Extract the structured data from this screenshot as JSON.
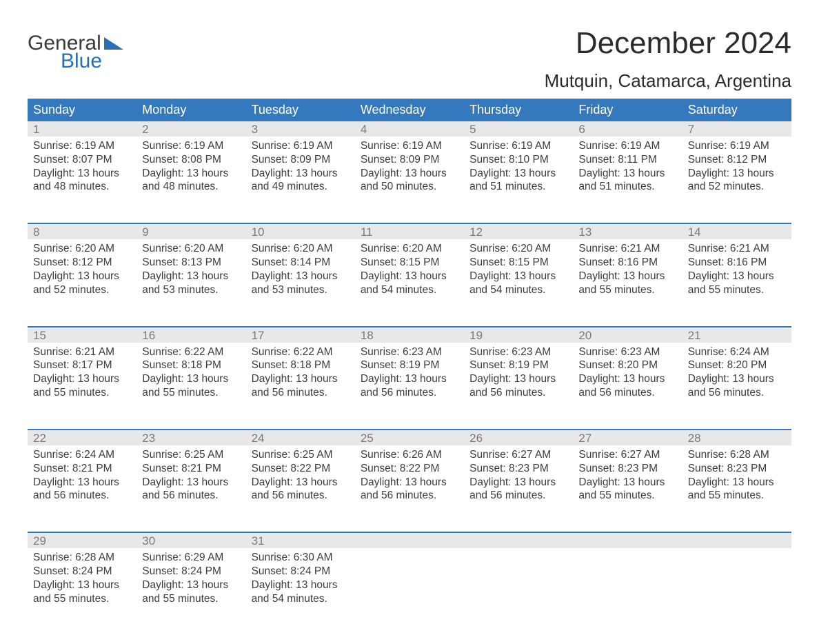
{
  "logo": {
    "line1": "General",
    "line2": "Blue"
  },
  "title": "December 2024",
  "location": "Mutquin, Catamarca, Argentina",
  "colors": {
    "header_bg": "#3478bd",
    "header_text": "#ffffff",
    "daynum_bg": "#e8e8e8",
    "daynum_text": "#7a7a7a",
    "body_text": "#3d3d3d",
    "week_border": "#3478bd",
    "logo_blue": "#2a6fb5"
  },
  "day_names": [
    "Sunday",
    "Monday",
    "Tuesday",
    "Wednesday",
    "Thursday",
    "Friday",
    "Saturday"
  ],
  "weeks": [
    [
      {
        "n": "1",
        "sr": "6:19 AM",
        "ss": "8:07 PM",
        "dl": "13 hours",
        "dm": "and 48 minutes."
      },
      {
        "n": "2",
        "sr": "6:19 AM",
        "ss": "8:08 PM",
        "dl": "13 hours",
        "dm": "and 48 minutes."
      },
      {
        "n": "3",
        "sr": "6:19 AM",
        "ss": "8:09 PM",
        "dl": "13 hours",
        "dm": "and 49 minutes."
      },
      {
        "n": "4",
        "sr": "6:19 AM",
        "ss": "8:09 PM",
        "dl": "13 hours",
        "dm": "and 50 minutes."
      },
      {
        "n": "5",
        "sr": "6:19 AM",
        "ss": "8:10 PM",
        "dl": "13 hours",
        "dm": "and 51 minutes."
      },
      {
        "n": "6",
        "sr": "6:19 AM",
        "ss": "8:11 PM",
        "dl": "13 hours",
        "dm": "and 51 minutes."
      },
      {
        "n": "7",
        "sr": "6:19 AM",
        "ss": "8:12 PM",
        "dl": "13 hours",
        "dm": "and 52 minutes."
      }
    ],
    [
      {
        "n": "8",
        "sr": "6:20 AM",
        "ss": "8:12 PM",
        "dl": "13 hours",
        "dm": "and 52 minutes."
      },
      {
        "n": "9",
        "sr": "6:20 AM",
        "ss": "8:13 PM",
        "dl": "13 hours",
        "dm": "and 53 minutes."
      },
      {
        "n": "10",
        "sr": "6:20 AM",
        "ss": "8:14 PM",
        "dl": "13 hours",
        "dm": "and 53 minutes."
      },
      {
        "n": "11",
        "sr": "6:20 AM",
        "ss": "8:15 PM",
        "dl": "13 hours",
        "dm": "and 54 minutes."
      },
      {
        "n": "12",
        "sr": "6:20 AM",
        "ss": "8:15 PM",
        "dl": "13 hours",
        "dm": "and 54 minutes."
      },
      {
        "n": "13",
        "sr": "6:21 AM",
        "ss": "8:16 PM",
        "dl": "13 hours",
        "dm": "and 55 minutes."
      },
      {
        "n": "14",
        "sr": "6:21 AM",
        "ss": "8:16 PM",
        "dl": "13 hours",
        "dm": "and 55 minutes."
      }
    ],
    [
      {
        "n": "15",
        "sr": "6:21 AM",
        "ss": "8:17 PM",
        "dl": "13 hours",
        "dm": "and 55 minutes."
      },
      {
        "n": "16",
        "sr": "6:22 AM",
        "ss": "8:18 PM",
        "dl": "13 hours",
        "dm": "and 55 minutes."
      },
      {
        "n": "17",
        "sr": "6:22 AM",
        "ss": "8:18 PM",
        "dl": "13 hours",
        "dm": "and 56 minutes."
      },
      {
        "n": "18",
        "sr": "6:23 AM",
        "ss": "8:19 PM",
        "dl": "13 hours",
        "dm": "and 56 minutes."
      },
      {
        "n": "19",
        "sr": "6:23 AM",
        "ss": "8:19 PM",
        "dl": "13 hours",
        "dm": "and 56 minutes."
      },
      {
        "n": "20",
        "sr": "6:23 AM",
        "ss": "8:20 PM",
        "dl": "13 hours",
        "dm": "and 56 minutes."
      },
      {
        "n": "21",
        "sr": "6:24 AM",
        "ss": "8:20 PM",
        "dl": "13 hours",
        "dm": "and 56 minutes."
      }
    ],
    [
      {
        "n": "22",
        "sr": "6:24 AM",
        "ss": "8:21 PM",
        "dl": "13 hours",
        "dm": "and 56 minutes."
      },
      {
        "n": "23",
        "sr": "6:25 AM",
        "ss": "8:21 PM",
        "dl": "13 hours",
        "dm": "and 56 minutes."
      },
      {
        "n": "24",
        "sr": "6:25 AM",
        "ss": "8:22 PM",
        "dl": "13 hours",
        "dm": "and 56 minutes."
      },
      {
        "n": "25",
        "sr": "6:26 AM",
        "ss": "8:22 PM",
        "dl": "13 hours",
        "dm": "and 56 minutes."
      },
      {
        "n": "26",
        "sr": "6:27 AM",
        "ss": "8:23 PM",
        "dl": "13 hours",
        "dm": "and 56 minutes."
      },
      {
        "n": "27",
        "sr": "6:27 AM",
        "ss": "8:23 PM",
        "dl": "13 hours",
        "dm": "and 55 minutes."
      },
      {
        "n": "28",
        "sr": "6:28 AM",
        "ss": "8:23 PM",
        "dl": "13 hours",
        "dm": "and 55 minutes."
      }
    ],
    [
      {
        "n": "29",
        "sr": "6:28 AM",
        "ss": "8:24 PM",
        "dl": "13 hours",
        "dm": "and 55 minutes."
      },
      {
        "n": "30",
        "sr": "6:29 AM",
        "ss": "8:24 PM",
        "dl": "13 hours",
        "dm": "and 55 minutes."
      },
      {
        "n": "31",
        "sr": "6:30 AM",
        "ss": "8:24 PM",
        "dl": "13 hours",
        "dm": "and 54 minutes."
      },
      null,
      null,
      null,
      null
    ]
  ],
  "labels": {
    "sunrise_prefix": "Sunrise: ",
    "sunset_prefix": "Sunset: ",
    "daylight_prefix": "Daylight: "
  }
}
